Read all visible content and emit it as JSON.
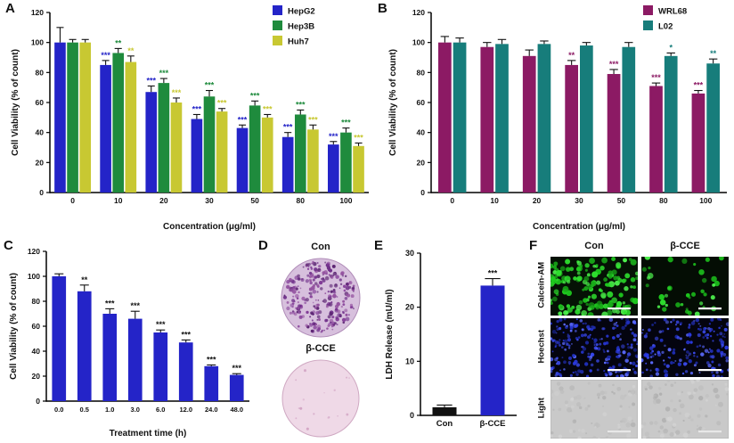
{
  "panels": {
    "a": {
      "label": "A"
    },
    "b": {
      "label": "B"
    },
    "c": {
      "label": "C"
    },
    "d": {
      "label": "D",
      "conditions": [
        "Con",
        "β-CCE"
      ]
    },
    "e": {
      "label": "E"
    },
    "f": {
      "label": "F",
      "columns": [
        "Con",
        "β-CCE"
      ],
      "rows": [
        "Calcein-AM",
        "Hoechst",
        "Light"
      ],
      "colors": {
        "calcein": "#2ad42a",
        "hoechst": "#3a4af0",
        "brightfield": "#c9c9c9"
      }
    }
  },
  "chart_data": [
    {
      "panel": "A",
      "type": "bar",
      "title": "",
      "xlabel": "Concentration (μg/ml)",
      "ylabel": "Cell Viability (% of count)",
      "ylim": [
        0,
        120
      ],
      "yticks": [
        0,
        20,
        40,
        60,
        80,
        100,
        120
      ],
      "categories": [
        "0",
        "10",
        "20",
        "30",
        "50",
        "80",
        "100"
      ],
      "legend_position": "top-right",
      "series": [
        {
          "name": "HepG2",
          "color": "#2424c8",
          "values": [
            100,
            85,
            67,
            49,
            43,
            37,
            32
          ],
          "errors": [
            10,
            3,
            4,
            3,
            2,
            3,
            2
          ],
          "sig": [
            "",
            "***",
            "***",
            "***",
            "***",
            "***",
            "***"
          ]
        },
        {
          "name": "Hep3B",
          "color": "#1f8b3d",
          "values": [
            100,
            93,
            73,
            64,
            58,
            52,
            40
          ],
          "errors": [
            2,
            3,
            3,
            4,
            3,
            3,
            3
          ],
          "sig": [
            "",
            "**",
            "***",
            "***",
            "***",
            "***",
            "***"
          ]
        },
        {
          "name": "Huh7",
          "color": "#c8c832",
          "values": [
            100,
            87,
            60,
            54,
            50,
            42,
            31
          ],
          "errors": [
            2,
            4,
            3,
            2,
            2,
            3,
            2
          ],
          "sig": [
            "",
            "**",
            "***",
            "***",
            "***",
            "***",
            "***"
          ]
        }
      ]
    },
    {
      "panel": "B",
      "type": "bar",
      "title": "",
      "xlabel": "Concentration (μg/ml)",
      "ylabel": "Cell Viability (% of count)",
      "ylim": [
        0,
        120
      ],
      "yticks": [
        0,
        20,
        40,
        60,
        80,
        100,
        120
      ],
      "categories": [
        "0",
        "10",
        "20",
        "30",
        "50",
        "80",
        "100"
      ],
      "legend_position": "top-right",
      "series": [
        {
          "name": "WRL68",
          "color": "#8c1a64",
          "values": [
            100,
            97,
            91,
            85,
            79,
            71,
            66
          ],
          "errors": [
            4,
            3,
            4,
            3,
            3,
            2,
            2
          ],
          "sig": [
            "",
            "",
            "",
            "**",
            "***",
            "***",
            "***"
          ]
        },
        {
          "name": "L02",
          "color": "#177d7b",
          "values": [
            100,
            99,
            99,
            98,
            97,
            91,
            86
          ],
          "errors": [
            3,
            3,
            2,
            2,
            3,
            2,
            3
          ],
          "sig": [
            "",
            "",
            "",
            "",
            "",
            "*",
            "**"
          ]
        }
      ]
    },
    {
      "panel": "C",
      "type": "bar",
      "title": "",
      "xlabel": "Treatment time (h)",
      "ylabel": "Cell Viability (% of count)",
      "ylim": [
        0,
        120
      ],
      "yticks": [
        0,
        20,
        40,
        60,
        80,
        100,
        120
      ],
      "categories": [
        "0.0",
        "0.5",
        "1.0",
        "3.0",
        "6.0",
        "12.0",
        "24.0",
        "48.0"
      ],
      "legend_position": "none",
      "series": [
        {
          "name": "",
          "color": "#2424c8",
          "sig_color": "#111111",
          "values": [
            100,
            88,
            70,
            66,
            55,
            47,
            28,
            21
          ],
          "errors": [
            2,
            5,
            4,
            6,
            2,
            2,
            1,
            1
          ],
          "sig": [
            "",
            "**",
            "***",
            "***",
            "***",
            "***",
            "***",
            "***"
          ]
        }
      ]
    },
    {
      "panel": "E",
      "type": "bar",
      "title": "",
      "xlabel": "",
      "ylabel": "LDH Release (mU/ml)",
      "ylim": [
        0,
        30
      ],
      "yticks": [
        0,
        10,
        20,
        30
      ],
      "categories": [
        "Con",
        "β-CCE"
      ],
      "legend_position": "none",
      "series": [
        {
          "name": "",
          "colors": [
            "#111111",
            "#2424c8"
          ],
          "sig_color": "#111111",
          "values": [
            1.5,
            24
          ],
          "errors": [
            0.4,
            1.3
          ],
          "sig": [
            "",
            "***"
          ]
        }
      ]
    }
  ]
}
